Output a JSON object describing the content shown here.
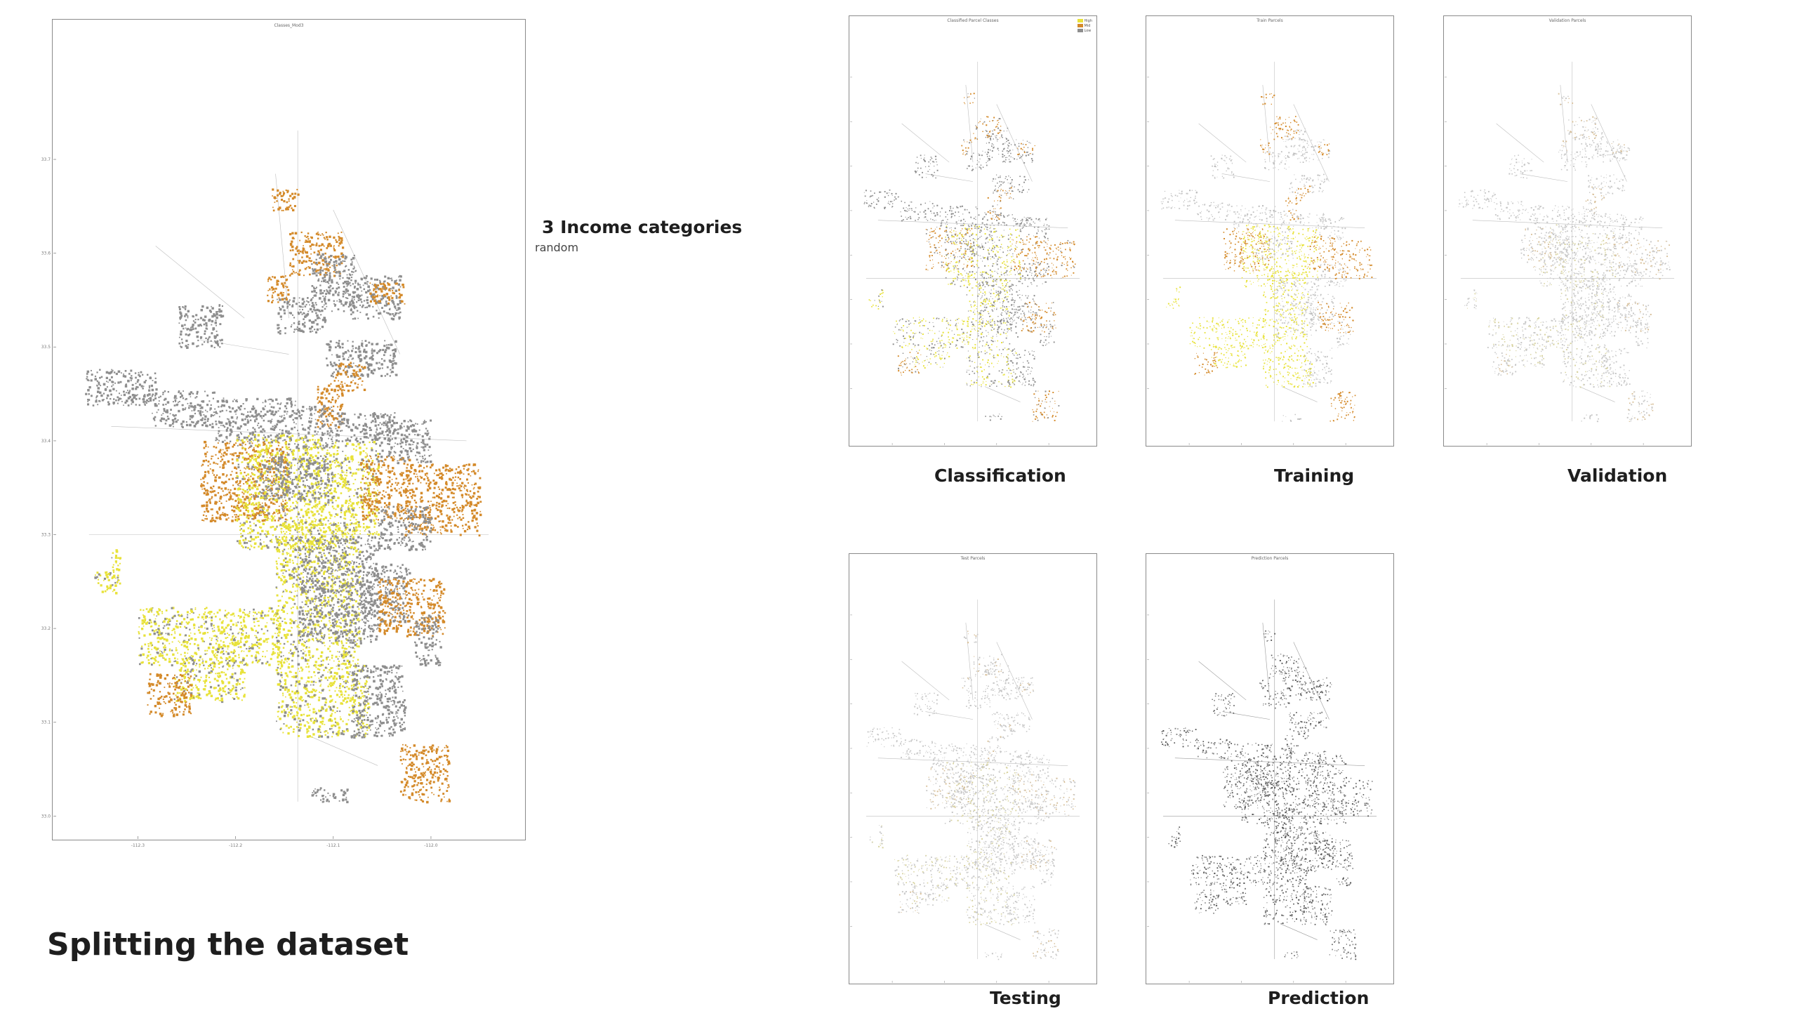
{
  "page": {
    "heading": "Splitting the dataset",
    "info": {
      "title": "3 Income categories",
      "subtitle": "random"
    }
  },
  "main_map": {
    "title": "Classes_Mod3",
    "x_ticks": [
      "-112.3",
      "-112.2",
      "-112.1",
      "-112.0"
    ],
    "y_ticks": [
      "33.7",
      "33.6",
      "33.5",
      "33.4",
      "33.3",
      "33.2",
      "33.1",
      "33.0"
    ]
  },
  "panels": [
    {
      "caption": "Classification",
      "title": "Classified Parcel Classes",
      "theme": "class",
      "legend": true
    },
    {
      "caption": "Training",
      "title": "Train Parcels",
      "theme": "train",
      "legend": false
    },
    {
      "caption": "Validation",
      "title": "Validation Parcels",
      "theme": "validation",
      "legend": false
    },
    {
      "caption": "Testing",
      "title": "Test Parcels",
      "theme": "testing",
      "legend": false
    },
    {
      "caption": "Prediction",
      "title": "Prediction Parcels",
      "theme": "prediction",
      "legend": false
    }
  ],
  "legend": [
    {
      "label": "High",
      "color": "#e8e23a"
    },
    {
      "label": "Mid",
      "color": "#d48a2a"
    },
    {
      "label": "Low",
      "color": "#8e8e8e"
    }
  ],
  "colors": {
    "high": "#e8e23a",
    "mid": "#d48a2a",
    "low": "#8e8e8e",
    "faint": "#c8c8c8",
    "dark": "#555555"
  }
}
